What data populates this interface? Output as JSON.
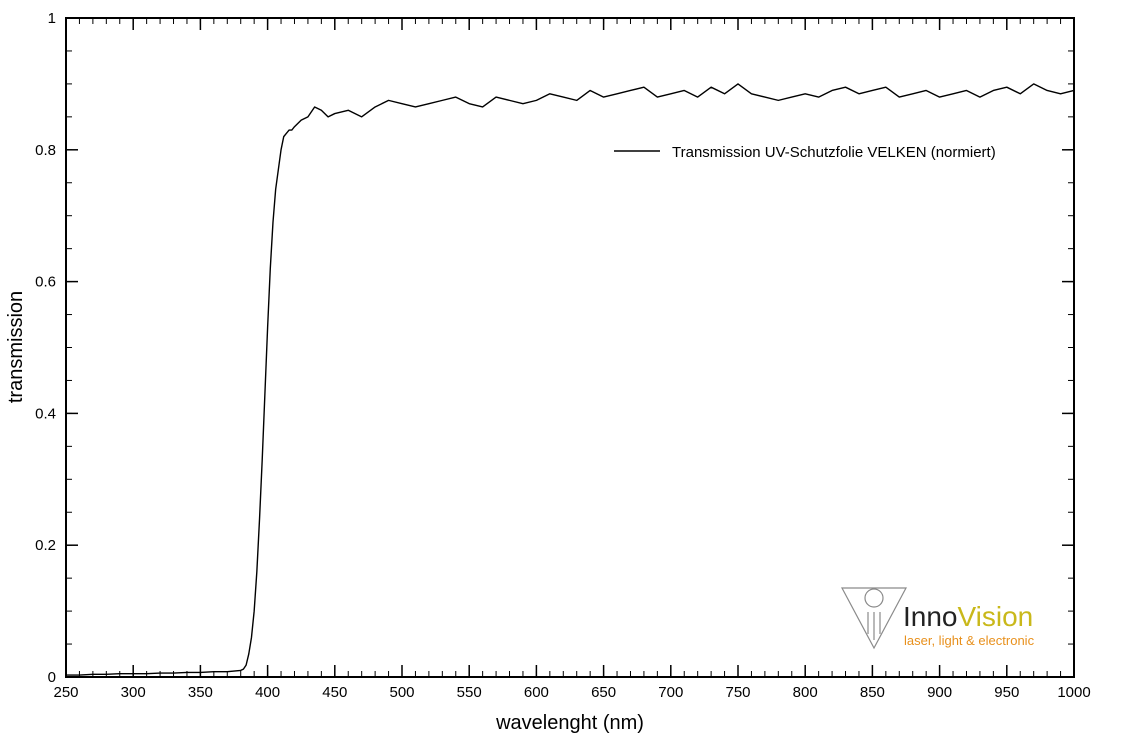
{
  "chart_data": {
    "type": "line",
    "title": "",
    "xlabel": "wavelenght (nm)",
    "ylabel": "transmission",
    "xlim": [
      250,
      1000
    ],
    "ylim": [
      0,
      1
    ],
    "x_ticks": [
      250,
      300,
      350,
      400,
      450,
      500,
      550,
      600,
      650,
      700,
      750,
      800,
      850,
      900,
      950,
      1000
    ],
    "x_tick_labels": [
      "250",
      "300",
      "350",
      "400",
      "450",
      "500",
      "550",
      "600",
      "650",
      "700",
      "750",
      "800",
      "850",
      "900",
      "950",
      "1000"
    ],
    "y_ticks": [
      0,
      0.2,
      0.4,
      0.6,
      0.8,
      1
    ],
    "y_tick_labels": [
      "0",
      "0.2",
      "0.4",
      "0.6",
      "0.8",
      "1"
    ],
    "grid": false,
    "legend_position": "top-right",
    "series": [
      {
        "name": "Transmission UV-Schutzfolie VELKEN (normiert)",
        "color": "#000000",
        "x": [
          250,
          260,
          270,
          280,
          290,
          300,
          310,
          320,
          330,
          340,
          350,
          360,
          370,
          375,
          380,
          382,
          384,
          386,
          388,
          390,
          392,
          394,
          396,
          398,
          400,
          402,
          404,
          406,
          408,
          410,
          412,
          414,
          416,
          418,
          420,
          425,
          430,
          435,
          440,
          445,
          450,
          460,
          470,
          480,
          490,
          500,
          510,
          520,
          530,
          540,
          550,
          560,
          570,
          580,
          590,
          600,
          610,
          620,
          630,
          640,
          650,
          660,
          670,
          680,
          690,
          700,
          710,
          720,
          730,
          740,
          750,
          760,
          770,
          780,
          790,
          800,
          810,
          820,
          830,
          840,
          850,
          860,
          870,
          880,
          890,
          900,
          910,
          920,
          930,
          940,
          950,
          960,
          970,
          980,
          990,
          1000
        ],
        "y": [
          0.003,
          0.003,
          0.004,
          0.004,
          0.005,
          0.005,
          0.005,
          0.006,
          0.006,
          0.007,
          0.007,
          0.008,
          0.008,
          0.009,
          0.01,
          0.012,
          0.018,
          0.035,
          0.06,
          0.1,
          0.16,
          0.24,
          0.33,
          0.43,
          0.53,
          0.62,
          0.69,
          0.74,
          0.77,
          0.8,
          0.82,
          0.825,
          0.83,
          0.83,
          0.835,
          0.845,
          0.85,
          0.865,
          0.86,
          0.85,
          0.855,
          0.86,
          0.85,
          0.865,
          0.875,
          0.87,
          0.865,
          0.87,
          0.875,
          0.88,
          0.87,
          0.865,
          0.88,
          0.875,
          0.87,
          0.875,
          0.885,
          0.88,
          0.875,
          0.89,
          0.88,
          0.885,
          0.89,
          0.895,
          0.88,
          0.885,
          0.89,
          0.88,
          0.895,
          0.885,
          0.9,
          0.885,
          0.88,
          0.875,
          0.88,
          0.885,
          0.88,
          0.89,
          0.895,
          0.885,
          0.89,
          0.895,
          0.88,
          0.885,
          0.89,
          0.88,
          0.885,
          0.89,
          0.88,
          0.89,
          0.895,
          0.885,
          0.9,
          0.89,
          0.885,
          0.89
        ]
      }
    ]
  },
  "logo": {
    "name_part1": "Inno",
    "name_part2": "Vision",
    "tagline": "laser, light & electronic",
    "color_dark": "#222222",
    "color_accent": "#c9b81a",
    "color_tagline": "#e8901c"
  }
}
